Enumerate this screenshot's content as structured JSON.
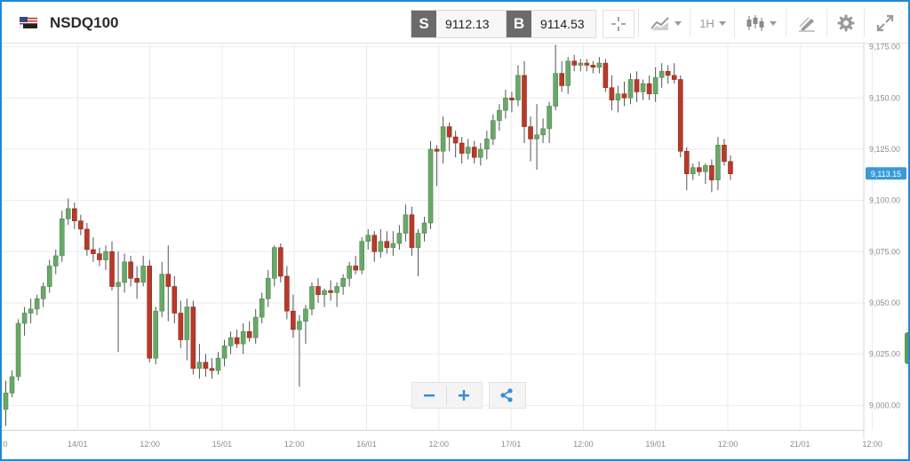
{
  "header": {
    "symbol": "NSDQ100",
    "sell_label": "S",
    "sell_price": "9112.13",
    "buy_label": "B",
    "buy_price": "9114.53",
    "timeframe": "1H",
    "icons": [
      "flag-icon",
      "crosshair-icon",
      "chart-type-icon",
      "candlestick-icon",
      "draw-icon",
      "gear-icon",
      "expand-icon"
    ]
  },
  "colors": {
    "bull": "#69a869",
    "bear": "#b83a2a",
    "wick": "#555555",
    "grid": "#ebebeb",
    "axis_text": "#8c8c8c",
    "price_tag": "#3a9ad9",
    "frame": "#1e88d8"
  },
  "chart_data": {
    "type": "candlestick",
    "y_ticks": [
      "9,000.00",
      "9,025.00",
      "9,050.00",
      "9,075.00",
      "9,100.00",
      "9,125.00",
      "9,150.00",
      "9,175.00"
    ],
    "y_tick_values": [
      9000,
      9025,
      9050,
      9075,
      9100,
      9125,
      9150,
      9175
    ],
    "ylim": [
      8988,
      9177
    ],
    "x_ticks": [
      "0",
      "14/01",
      "12:00",
      "15/01",
      "12:00",
      "16/01",
      "12:00",
      "17/01",
      "12:00",
      "19/01",
      "12:00",
      "21/01",
      "12:00"
    ],
    "current_price": "9,113.15",
    "current_value": 9113.15,
    "grid": true,
    "candles": [
      [
        8998,
        9012,
        8990,
        9006
      ],
      [
        9006,
        9017,
        9004,
        9014
      ],
      [
        9014,
        9042,
        9012,
        9040
      ],
      [
        9040,
        9048,
        9034,
        9045
      ],
      [
        9045,
        9052,
        9040,
        9047
      ],
      [
        9047,
        9054,
        9044,
        9052
      ],
      [
        9052,
        9060,
        9048,
        9058
      ],
      [
        9058,
        9071,
        9055,
        9068
      ],
      [
        9068,
        9076,
        9064,
        9073
      ],
      [
        9073,
        9095,
        9070,
        9091
      ],
      [
        9091,
        9101,
        9088,
        9096
      ],
      [
        9096,
        9099,
        9086,
        9090
      ],
      [
        9090,
        9093,
        9083,
        9086
      ],
      [
        9086,
        9089,
        9073,
        9076
      ],
      [
        9076,
        9082,
        9070,
        9074
      ],
      [
        9074,
        9077,
        9068,
        9071
      ],
      [
        9071,
        9078,
        9066,
        9075
      ],
      [
        9075,
        9080,
        9056,
        9058
      ],
      [
        9058,
        9075,
        9026,
        9060
      ],
      [
        9060,
        9074,
        9055,
        9070
      ],
      [
        9070,
        9073,
        9058,
        9062
      ],
      [
        9062,
        9068,
        9052,
        9060
      ],
      [
        9060,
        9073,
        9058,
        9068
      ],
      [
        9068,
        9071,
        9021,
        9023
      ],
      [
        9023,
        9048,
        9020,
        9046
      ],
      [
        9046,
        9070,
        9043,
        9064
      ],
      [
        9064,
        9078,
        9041,
        9058
      ],
      [
        9058,
        9063,
        9040,
        9045
      ],
      [
        9045,
        9051,
        9028,
        9032
      ],
      [
        9032,
        9052,
        9022,
        9048
      ],
      [
        9048,
        9051,
        9015,
        9018
      ],
      [
        9018,
        9030,
        9013,
        9021
      ],
      [
        9021,
        9025,
        9014,
        9018
      ],
      [
        9018,
        9023,
        9013,
        9017
      ],
      [
        9017,
        9026,
        9015,
        9023
      ],
      [
        9023,
        9032,
        9019,
        9029
      ],
      [
        9029,
        9036,
        9025,
        9033
      ],
      [
        9033,
        9037,
        9028,
        9030
      ],
      [
        9030,
        9040,
        9025,
        9036
      ],
      [
        9036,
        9041,
        9031,
        9033
      ],
      [
        9033,
        9047,
        9030,
        9043
      ],
      [
        9043,
        9055,
        9040,
        9052
      ],
      [
        9052,
        9066,
        9048,
        9062
      ],
      [
        9062,
        9078,
        9058,
        9077
      ],
      [
        9077,
        9079,
        9060,
        9063
      ],
      [
        9063,
        9068,
        9042,
        9046
      ],
      [
        9046,
        9054,
        9033,
        9037
      ],
      [
        9037,
        9044,
        9009,
        9041
      ],
      [
        9041,
        9049,
        9030,
        9047
      ],
      [
        9047,
        9060,
        9044,
        9058
      ],
      [
        9058,
        9062,
        9050,
        9054
      ],
      [
        9054,
        9057,
        9048,
        9056
      ],
      [
        9056,
        9061,
        9051,
        9055
      ],
      [
        9055,
        9060,
        9048,
        9058
      ],
      [
        9058,
        9064,
        9054,
        9062
      ],
      [
        9062,
        9070,
        9058,
        9068
      ],
      [
        9068,
        9073,
        9064,
        9066
      ],
      [
        9066,
        9082,
        9064,
        9080
      ],
      [
        9080,
        9086,
        9076,
        9083
      ],
      [
        9083,
        9085,
        9070,
        9075
      ],
      [
        9075,
        9086,
        9072,
        9080
      ],
      [
        9080,
        9085,
        9074,
        9077
      ],
      [
        9077,
        9085,
        9073,
        9079
      ],
      [
        9079,
        9088,
        9076,
        9084
      ],
      [
        9084,
        9098,
        9080,
        9093
      ],
      [
        9093,
        9097,
        9073,
        9077
      ],
      [
        9077,
        9086,
        9063,
        9084
      ],
      [
        9084,
        9092,
        9080,
        9089
      ],
      [
        9089,
        9129,
        9086,
        9125
      ],
      [
        9125,
        9127,
        9107,
        9124
      ],
      [
        9124,
        9141,
        9118,
        9136
      ],
      [
        9136,
        9138,
        9124,
        9131
      ],
      [
        9131,
        9134,
        9121,
        9128
      ],
      [
        9128,
        9131,
        9118,
        9123
      ],
      [
        9123,
        9130,
        9120,
        9126
      ],
      [
        9126,
        9129,
        9118,
        9121
      ],
      [
        9121,
        9128,
        9117,
        9125
      ],
      [
        9125,
        9134,
        9120,
        9130
      ],
      [
        9130,
        9142,
        9127,
        9139
      ],
      [
        9139,
        9147,
        9134,
        9144
      ],
      [
        9144,
        9154,
        9140,
        9150
      ],
      [
        9150,
        9153,
        9143,
        9149
      ],
      [
        9149,
        9166,
        9146,
        9161
      ],
      [
        9161,
        9168,
        9128,
        9136
      ],
      [
        9136,
        9141,
        9119,
        9130
      ],
      [
        9130,
        9147,
        9115,
        9132
      ],
      [
        9132,
        9140,
        9128,
        9135
      ],
      [
        9135,
        9148,
        9128,
        9146
      ],
      [
        9146,
        9176,
        9144,
        9162
      ],
      [
        9162,
        9168,
        9153,
        9156
      ],
      [
        9156,
        9170,
        9152,
        9168
      ],
      [
        9168,
        9171,
        9163,
        9166
      ],
      [
        9166,
        9169,
        9163,
        9167
      ],
      [
        9167,
        9169,
        9163,
        9166
      ],
      [
        9166,
        9168,
        9162,
        9165
      ],
      [
        9165,
        9170,
        9162,
        9167
      ],
      [
        9167,
        9169,
        9153,
        9155
      ],
      [
        9155,
        9161,
        9144,
        9149
      ],
      [
        9149,
        9156,
        9143,
        9152
      ],
      [
        9152,
        9158,
        9146,
        9150
      ],
      [
        9150,
        9162,
        9147,
        9159
      ],
      [
        9159,
        9163,
        9148,
        9153
      ],
      [
        9153,
        9159,
        9149,
        9157
      ],
      [
        9157,
        9161,
        9149,
        9152
      ],
      [
        9152,
        9165,
        9148,
        9160
      ],
      [
        9160,
        9167,
        9155,
        9163
      ],
      [
        9163,
        9166,
        9157,
        9161
      ],
      [
        9161,
        9167,
        9157,
        9159
      ],
      [
        9159,
        9161,
        9121,
        9124
      ],
      [
        9124,
        9126,
        9105,
        9113
      ],
      [
        9113,
        9118,
        9110,
        9116
      ],
      [
        9116,
        9119,
        9112,
        9114
      ],
      [
        9114,
        9118,
        9108,
        9117
      ],
      [
        9117,
        9120,
        9104,
        9110
      ],
      [
        9110,
        9131,
        9105,
        9127
      ],
      [
        9127,
        9130,
        9117,
        9119
      ],
      [
        9119,
        9122,
        9110,
        9113
      ]
    ]
  },
  "controls": {
    "zoom_out_icon": "minus-icon",
    "zoom_in_icon": "plus-icon",
    "share_icon": "share-icon"
  }
}
